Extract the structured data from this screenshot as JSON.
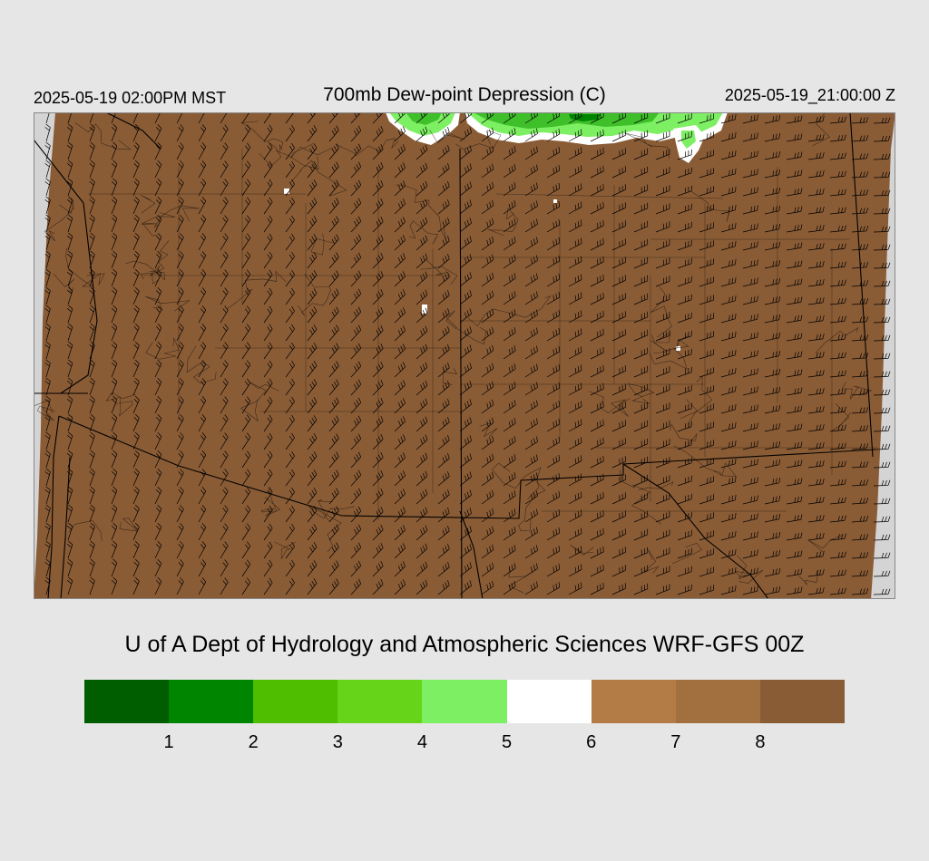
{
  "header": {
    "valid_local": "2025-05-19 02:00PM MST",
    "title": "700mb Dew-point Depression (C)",
    "valid_utc": "2025-05-19_21:00:00 Z"
  },
  "credit": "U of A Dept of Hydrology and Atmospheric Sciences WRF-GFS 00Z",
  "colors": {
    "background": "#e6e6e6",
    "outside_domain": "#d4d4d4",
    "dry_fill": "#8a5c36",
    "moist_green": "#3fbf2a",
    "lines": "#000000"
  },
  "icons": {
    "wind_barb": "wind-barb-icon"
  },
  "legend": {
    "colors": [
      "#005e00",
      "#008500",
      "#4fbd00",
      "#66d419",
      "#7def63",
      "#ffffff",
      "#b37c46",
      "#a26f3f",
      "#8a5c36"
    ],
    "ticks": [
      "1",
      "2",
      "3",
      "4",
      "5",
      "6",
      "7",
      "8"
    ]
  }
}
